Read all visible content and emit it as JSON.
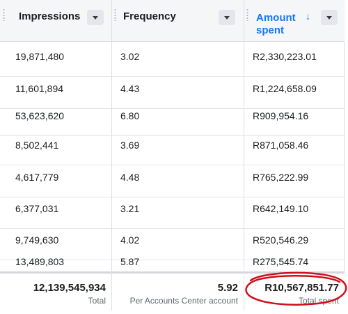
{
  "columns": [
    {
      "label": "Impressions"
    },
    {
      "label": "Frequency"
    },
    {
      "label_line1": "Amount",
      "label_line2": "spent",
      "sort": "↓"
    }
  ],
  "rows": [
    {
      "impressions": "19,871,480",
      "frequency": "3.02",
      "amount": "R2,330,223.01"
    },
    {
      "impressions": "11,601,894",
      "frequency": "4.43",
      "amount": "R1,224,658.09"
    },
    {
      "impressions": "53,623,620",
      "frequency": "6.80",
      "amount": "R909,954.16"
    },
    {
      "impressions": "8,502,441",
      "frequency": "3.69",
      "amount": "R871,058.46"
    },
    {
      "impressions": "4,617,779",
      "frequency": "4.48",
      "amount": "R765,222.99"
    },
    {
      "impressions": "6,377,031",
      "frequency": "3.21",
      "amount": "R642,149.10"
    },
    {
      "impressions": "9,749,630",
      "frequency": "4.02",
      "amount": "R520,546.29"
    },
    {
      "impressions": "13,489,803",
      "frequency": "5.87",
      "amount": "R275,545.74"
    }
  ],
  "footer": {
    "impressions_value": "12,139,545,934",
    "impressions_sub": "Total",
    "frequency_value": "5.92",
    "frequency_sub": "Per Accounts Center account",
    "amount_value": "R10,567,851.77",
    "amount_sub": "Total spent"
  },
  "colors": {
    "accent": "#1877f2",
    "annotation": "#d0101a"
  }
}
